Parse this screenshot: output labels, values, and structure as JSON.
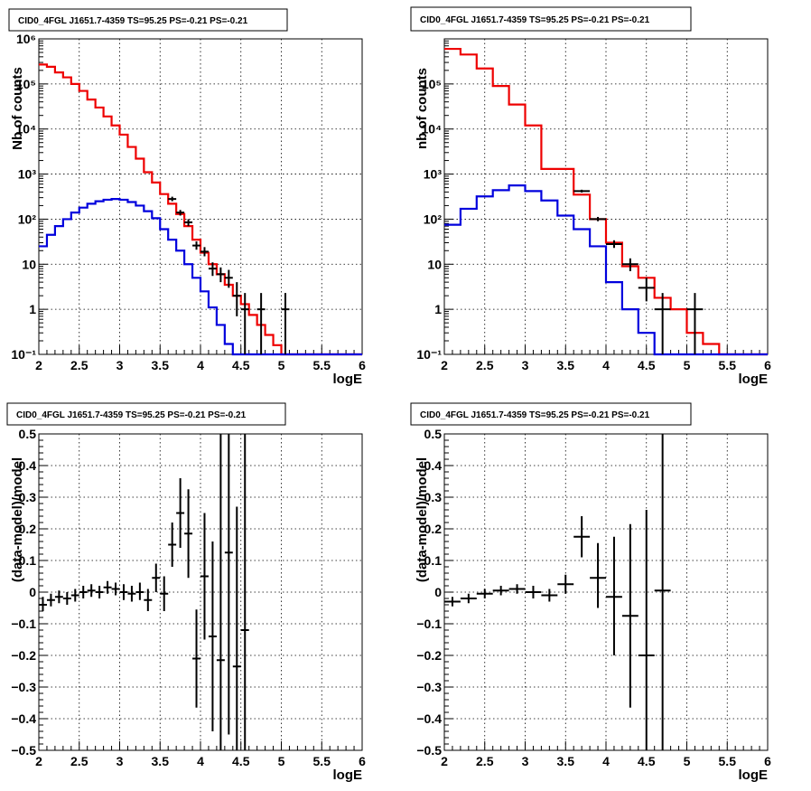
{
  "colors": {
    "data": "#000000",
    "model_total": "#ee0000",
    "model_source": "#0000dd",
    "grid": "#000000"
  },
  "chart_data": [
    {
      "type": "line",
      "title": "CID0_4FGL J1651.7-4359 TS=95.25 PS=-0.21 PS=-0.21",
      "xlabel": "logE",
      "ylabel": "Nb of counts",
      "xlim": [
        2,
        6
      ],
      "ylim": [
        0.1,
        1000000
      ],
      "log_y": true,
      "grid": true,
      "x_ticks": [
        "2",
        "2.5",
        "3",
        "3.5",
        "4",
        "4.5",
        "5",
        "5.5",
        "6"
      ],
      "y_ticks": [
        "10⁻¹",
        "1",
        "10",
        "10²",
        "10³",
        "10⁴",
        "10⁵",
        "10⁶"
      ],
      "bin_width": 0.1,
      "series": [
        {
          "style": "hist",
          "color": "#ee0000",
          "x": [
            2.05,
            2.15,
            2.25,
            2.35,
            2.45,
            2.55,
            2.65,
            2.75,
            2.85,
            2.95,
            3.05,
            3.15,
            3.25,
            3.35,
            3.45,
            3.55,
            3.65,
            3.75,
            3.85,
            3.95,
            4.05,
            4.15,
            4.25,
            4.35,
            4.45,
            4.55,
            4.65,
            4.75,
            4.85,
            4.95,
            5.05,
            5.15,
            5.25,
            5.35,
            5.45,
            5.55,
            5.65,
            5.75,
            5.85,
            5.95
          ],
          "values": [
            270000,
            240000,
            180000,
            140000,
            100000,
            70000,
            45000,
            30000,
            19000,
            12000,
            7500,
            4000,
            2200,
            1100,
            650,
            360,
            220,
            130,
            70,
            35,
            18,
            10,
            6,
            3.5,
            2,
            1.3,
            0.75,
            0.45,
            0.27,
            0.16,
            0.1,
            0.1,
            0.1,
            0.1,
            0.1,
            0.1,
            0.1,
            0.1,
            0.1,
            0.1
          ]
        },
        {
          "style": "hist",
          "color": "#0000dd",
          "x": [
            2.05,
            2.15,
            2.25,
            2.35,
            2.45,
            2.55,
            2.65,
            2.75,
            2.85,
            2.95,
            3.05,
            3.15,
            3.25,
            3.35,
            3.45,
            3.55,
            3.65,
            3.75,
            3.85,
            3.95,
            4.05,
            4.15,
            4.25,
            4.35,
            4.45,
            4.55,
            4.65,
            4.75,
            4.85,
            4.95,
            5.05,
            5.15,
            5.25,
            5.35,
            5.45,
            5.55,
            5.65,
            5.75,
            5.85,
            5.95
          ],
          "values": [
            25,
            45,
            70,
            100,
            140,
            180,
            220,
            250,
            270,
            280,
            270,
            240,
            200,
            150,
            105,
            60,
            35,
            20,
            10,
            5,
            2.5,
            1.1,
            0.45,
            0.17,
            0.1,
            0.1,
            0.1,
            0.1,
            0.1,
            0.1,
            0.1,
            0.1,
            0.1,
            0.1,
            0.1,
            0.1,
            0.1,
            0.1,
            0.1,
            0.1
          ]
        },
        {
          "style": "errorbar",
          "color": "#000000",
          "points": [
            {
              "x": 3.65,
              "y": 280,
              "lo": 250,
              "hi": 315
            },
            {
              "x": 3.75,
              "y": 140,
              "lo": 120,
              "hi": 160
            },
            {
              "x": 3.85,
              "y": 85,
              "lo": 70,
              "hi": 100
            },
            {
              "x": 3.95,
              "y": 26,
              "lo": 21,
              "hi": 32
            },
            {
              "x": 4.05,
              "y": 19,
              "lo": 15,
              "hi": 24
            },
            {
              "x": 4.15,
              "y": 8,
              "lo": 5.5,
              "hi": 11
            },
            {
              "x": 4.25,
              "y": 6,
              "lo": 4,
              "hi": 8.5
            },
            {
              "x": 4.35,
              "y": 5,
              "lo": 3,
              "hi": 7.5
            },
            {
              "x": 4.45,
              "y": 2,
              "lo": 0.7,
              "hi": 4
            },
            {
              "x": 4.55,
              "y": 1,
              "lo": 0.1,
              "hi": 2.3
            },
            {
              "x": 4.75,
              "y": 1,
              "lo": 0.1,
              "hi": 2.3
            },
            {
              "x": 5.05,
              "y": 1,
              "lo": 0.1,
              "hi": 2.3
            }
          ]
        }
      ]
    },
    {
      "type": "line",
      "title": "CID0_4FGL J1651.7-4359 TS=95.25 PS=-0.21 PS=-0.21",
      "xlabel": "logE",
      "ylabel": "nb of counts",
      "xlim": [
        2,
        6
      ],
      "ylim": [
        0.1,
        1000000
      ],
      "log_y": true,
      "grid": true,
      "x_ticks": [
        "2",
        "2.5",
        "3",
        "3.5",
        "4",
        "4.5",
        "5",
        "5.5",
        "6"
      ],
      "y_ticks": [
        "10⁻¹",
        "1",
        "10",
        "10²",
        "10³",
        "10⁴",
        "10⁵"
      ],
      "bin_width": 0.2,
      "series": [
        {
          "style": "hist",
          "color": "#ee0000",
          "x": [
            2.1,
            2.3,
            2.5,
            2.7,
            2.9,
            3.1,
            3.3,
            3.5,
            3.7,
            3.9,
            4.1,
            4.3,
            4.5,
            4.7,
            4.9,
            5.1,
            5.3,
            5.5,
            5.7,
            5.9
          ],
          "values": [
            600000,
            450000,
            220000,
            90000,
            35000,
            12000,
            1300,
            1300,
            350,
            100,
            30,
            9,
            5,
            1.8,
            1.0,
            0.3,
            0.17,
            0.1,
            0.1,
            0.1
          ]
        },
        {
          "style": "hist",
          "color": "#0000dd",
          "x": [
            2.1,
            2.3,
            2.5,
            2.7,
            2.9,
            3.1,
            3.3,
            3.5,
            3.7,
            3.9,
            4.1,
            4.3,
            4.5,
            4.7,
            4.9,
            5.1,
            5.3,
            5.5,
            5.7,
            5.9
          ],
          "values": [
            75,
            170,
            320,
            440,
            560,
            420,
            260,
            120,
            60,
            25,
            4,
            1,
            0.3,
            0.1,
            0.1,
            0.1,
            0.1,
            0.1,
            0.1,
            0.1
          ]
        },
        {
          "style": "errorbar",
          "color": "#000000",
          "points": [
            {
              "x": 3.7,
              "y": 420,
              "lo": 390,
              "hi": 450
            },
            {
              "x": 3.9,
              "y": 100,
              "lo": 90,
              "hi": 112
            },
            {
              "x": 4.1,
              "y": 28,
              "lo": 23,
              "hi": 34
            },
            {
              "x": 4.3,
              "y": 10,
              "lo": 7,
              "hi": 13.5
            },
            {
              "x": 4.5,
              "y": 3,
              "lo": 1.5,
              "hi": 5
            },
            {
              "x": 4.7,
              "y": 1,
              "lo": 0.1,
              "hi": 2.3
            },
            {
              "x": 5.1,
              "y": 1,
              "lo": 0.1,
              "hi": 2.3
            }
          ]
        }
      ]
    },
    {
      "type": "scatter",
      "title": "CID0_4FGL J1651.7-4359 TS=95.25 PS=-0.21 PS=-0.21",
      "xlabel": "logE",
      "ylabel": "(data-model)/model",
      "xlim": [
        2,
        6
      ],
      "ylim": [
        -0.5,
        0.5
      ],
      "log_y": false,
      "grid": true,
      "x_ticks": [
        "2",
        "2.5",
        "3",
        "3.5",
        "4",
        "4.5",
        "5",
        "5.5",
        "6"
      ],
      "y_ticks": [
        "−0.5",
        "−0.4",
        "−0.3",
        "−0.2",
        "−0.1",
        "0",
        "0.1",
        "0.2",
        "0.3",
        "0.4",
        "0.5"
      ],
      "bin_width": 0.1,
      "series": [
        {
          "style": "errorbar",
          "color": "#000000",
          "points": [
            {
              "x": 2.05,
              "y": -0.04,
              "lo": -0.06,
              "hi": -0.015
            },
            {
              "x": 2.15,
              "y": -0.025,
              "lo": -0.045,
              "hi": -0.005
            },
            {
              "x": 2.25,
              "y": -0.015,
              "lo": -0.035,
              "hi": 0.005
            },
            {
              "x": 2.35,
              "y": -0.02,
              "lo": -0.04,
              "hi": 0.0
            },
            {
              "x": 2.45,
              "y": -0.01,
              "lo": -0.03,
              "hi": 0.01
            },
            {
              "x": 2.55,
              "y": 0.0,
              "lo": -0.02,
              "hi": 0.02
            },
            {
              "x": 2.65,
              "y": 0.005,
              "lo": -0.015,
              "hi": 0.025
            },
            {
              "x": 2.75,
              "y": 0.0,
              "lo": -0.02,
              "hi": 0.02
            },
            {
              "x": 2.85,
              "y": 0.015,
              "lo": -0.005,
              "hi": 0.035
            },
            {
              "x": 2.95,
              "y": 0.01,
              "lo": -0.01,
              "hi": 0.03
            },
            {
              "x": 3.05,
              "y": 0.0,
              "lo": -0.025,
              "hi": 0.025
            },
            {
              "x": 3.15,
              "y": -0.005,
              "lo": -0.03,
              "hi": 0.02
            },
            {
              "x": 3.25,
              "y": 0.0,
              "lo": -0.025,
              "hi": 0.03
            },
            {
              "x": 3.35,
              "y": -0.025,
              "lo": -0.06,
              "hi": 0.01
            },
            {
              "x": 3.45,
              "y": 0.045,
              "lo": 0.0,
              "hi": 0.09
            },
            {
              "x": 3.55,
              "y": -0.005,
              "lo": -0.06,
              "hi": 0.05
            },
            {
              "x": 3.65,
              "y": 0.15,
              "lo": 0.08,
              "hi": 0.22
            },
            {
              "x": 3.75,
              "y": 0.25,
              "lo": 0.14,
              "hi": 0.36
            },
            {
              "x": 3.85,
              "y": 0.185,
              "lo": 0.045,
              "hi": 0.325
            },
            {
              "x": 3.95,
              "y": -0.21,
              "lo": -0.365,
              "hi": -0.055
            },
            {
              "x": 4.05,
              "y": 0.05,
              "lo": -0.15,
              "hi": 0.25
            },
            {
              "x": 4.15,
              "y": -0.14,
              "lo": -0.44,
              "hi": 0.16
            },
            {
              "x": 4.25,
              "y": -0.215,
              "lo": -0.5,
              "hi": 0.5
            },
            {
              "x": 4.35,
              "y": 0.125,
              "lo": -0.45,
              "hi": 0.5
            },
            {
              "x": 4.45,
              "y": -0.235,
              "lo": -0.5,
              "hi": 0.27
            },
            {
              "x": 4.55,
              "y": -0.12,
              "lo": -0.5,
              "hi": 0.5
            }
          ]
        }
      ]
    },
    {
      "type": "scatter",
      "title": "CID0_4FGL J1651.7-4359 TS=95.25 PS=-0.21 PS=-0.21",
      "xlabel": "logE",
      "ylabel": "(data-model)/model",
      "xlim": [
        2,
        6
      ],
      "ylim": [
        -0.5,
        0.5
      ],
      "log_y": false,
      "grid": true,
      "x_ticks": [
        "2",
        "2.5",
        "3",
        "3.5",
        "4",
        "4.5",
        "5",
        "5.5",
        "6"
      ],
      "y_ticks": [
        "−0.5",
        "−0.4",
        "−0.3",
        "−0.2",
        "−0.1",
        "0",
        "0.1",
        "0.2",
        "0.3",
        "0.4",
        "0.5"
      ],
      "bin_width": 0.2,
      "series": [
        {
          "style": "errorbar",
          "color": "#000000",
          "points": [
            {
              "x": 2.1,
              "y": -0.03,
              "lo": -0.045,
              "hi": -0.015
            },
            {
              "x": 2.3,
              "y": -0.02,
              "lo": -0.035,
              "hi": -0.005
            },
            {
              "x": 2.5,
              "y": -0.005,
              "lo": -0.02,
              "hi": 0.01
            },
            {
              "x": 2.7,
              "y": 0.005,
              "lo": -0.01,
              "hi": 0.02
            },
            {
              "x": 2.9,
              "y": 0.01,
              "lo": -0.005,
              "hi": 0.025
            },
            {
              "x": 3.1,
              "y": 0.0,
              "lo": -0.02,
              "hi": 0.02
            },
            {
              "x": 3.3,
              "y": -0.01,
              "lo": -0.03,
              "hi": 0.01
            },
            {
              "x": 3.5,
              "y": 0.025,
              "lo": -0.005,
              "hi": 0.055
            },
            {
              "x": 3.7,
              "y": 0.175,
              "lo": 0.11,
              "hi": 0.24
            },
            {
              "x": 3.9,
              "y": 0.045,
              "lo": -0.05,
              "hi": 0.155
            },
            {
              "x": 4.1,
              "y": -0.015,
              "lo": -0.2,
              "hi": 0.175
            },
            {
              "x": 4.3,
              "y": -0.075,
              "lo": -0.365,
              "hi": 0.215
            },
            {
              "x": 4.5,
              "y": -0.2,
              "lo": -0.5,
              "hi": 0.26
            },
            {
              "x": 4.7,
              "y": 0.005,
              "lo": -0.5,
              "hi": 0.5
            }
          ]
        }
      ]
    }
  ]
}
